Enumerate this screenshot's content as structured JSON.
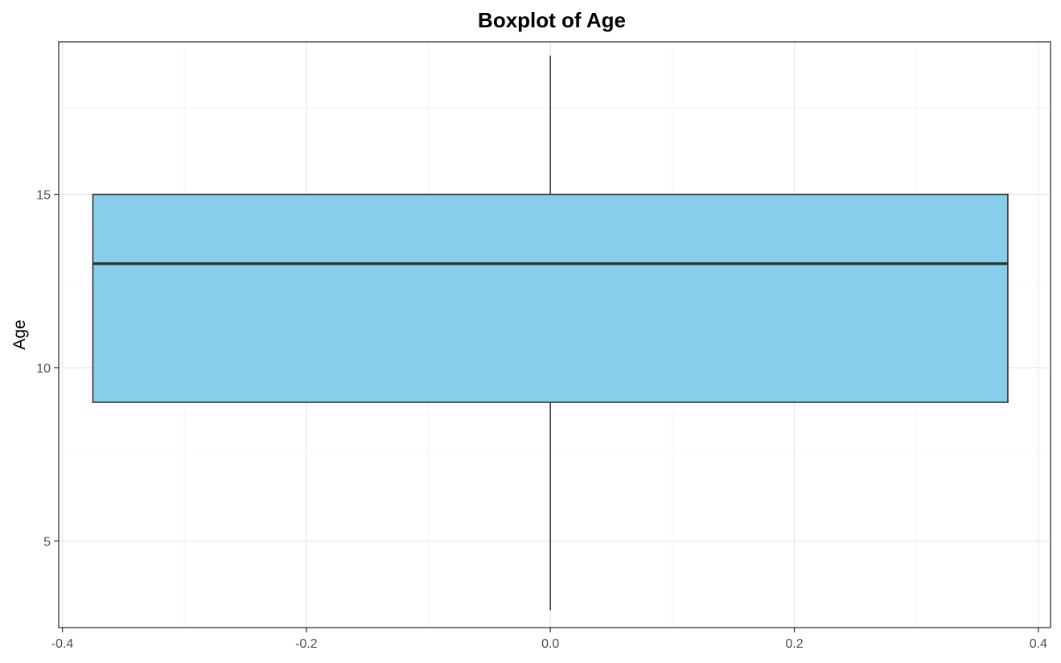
{
  "chart_data": {
    "type": "boxplot",
    "title": "Boxplot of Age",
    "xlabel": "",
    "ylabel": "Age",
    "xlim": [
      -0.403,
      0.41
    ],
    "ylim": [
      2.5,
      19.4
    ],
    "x_ticks": [
      -0.4,
      -0.2,
      0.0,
      0.2,
      0.4
    ],
    "x_tick_labels": [
      "-0.4",
      "-0.2",
      "0.0",
      "0.2",
      "0.4"
    ],
    "y_ticks": [
      5,
      10,
      15
    ],
    "y_tick_labels": [
      "5",
      "10",
      "15"
    ],
    "grid": true,
    "boxes": [
      {
        "x": 0.0,
        "width": 0.75,
        "min": 3,
        "q1": 9,
        "median": 13,
        "q3": 15,
        "max": 19
      }
    ],
    "colors": {
      "box_fill": "#87CEEB",
      "box_stroke": "#333333",
      "grid_major": "#e6e6e6",
      "grid_minor": "#f2f2f2",
      "panel_border": "#333333"
    }
  }
}
